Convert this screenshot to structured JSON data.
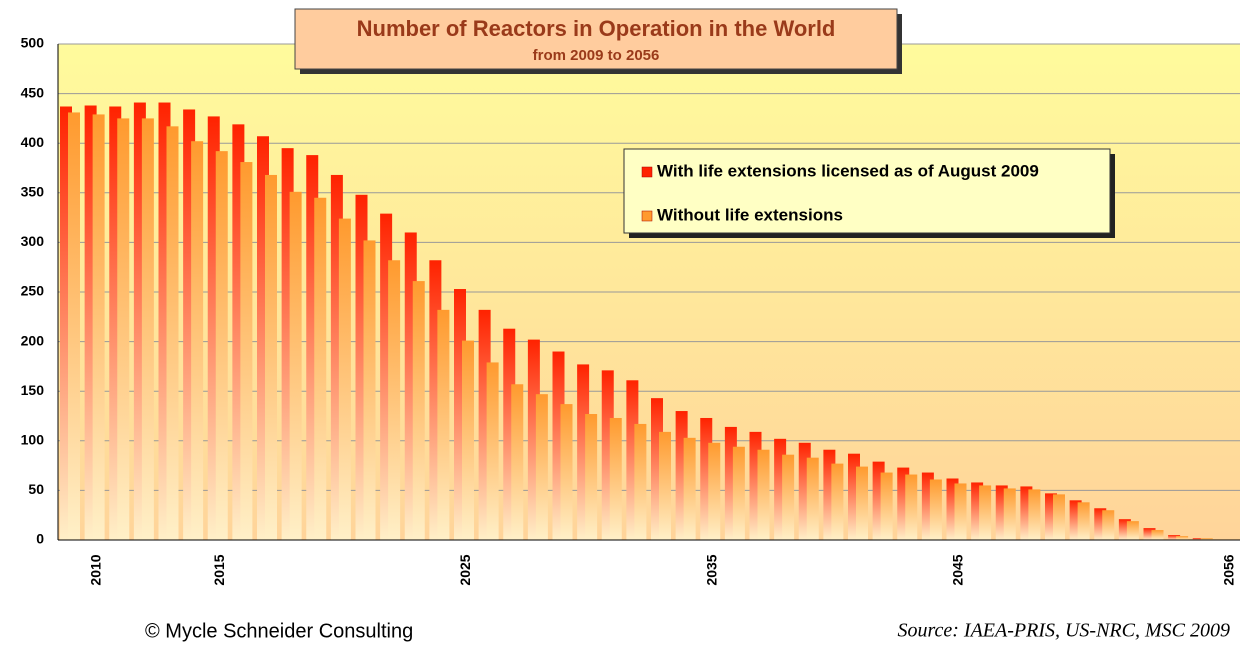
{
  "chart_data": {
    "type": "bar",
    "title": "Number of Reactors in Operation in the World",
    "subtitle": "from 2009 to 2056",
    "categories": [
      null,
      "2010",
      null,
      null,
      null,
      null,
      "2015",
      null,
      null,
      null,
      null,
      null,
      null,
      null,
      null,
      null,
      "2025",
      null,
      null,
      null,
      null,
      null,
      null,
      null,
      null,
      null,
      "2035",
      null,
      null,
      null,
      null,
      null,
      null,
      null,
      null,
      null,
      "2045",
      null,
      null,
      null,
      null,
      null,
      null,
      null,
      null,
      null,
      null,
      "2056"
    ],
    "series": [
      {
        "name": "With life extensions licensed as of August 2009",
        "color": "#ff2200",
        "values": [
          437,
          438,
          437,
          441,
          441,
          434,
          427,
          419,
          407,
          395,
          388,
          368,
          348,
          329,
          310,
          282,
          253,
          232,
          213,
          202,
          190,
          177,
          171,
          161,
          143,
          130,
          123,
          114,
          109,
          102,
          98,
          91,
          87,
          79,
          73,
          68,
          62,
          58,
          55,
          54,
          47,
          40,
          32,
          21,
          12,
          5,
          2,
          0
        ]
      },
      {
        "name": "Without life extensions",
        "color": "#ff9a2e",
        "values": [
          431,
          429,
          425,
          425,
          417,
          402,
          392,
          381,
          368,
          351,
          345,
          324,
          302,
          282,
          261,
          232,
          201,
          179,
          157,
          147,
          137,
          127,
          123,
          117,
          109,
          103,
          98,
          94,
          91,
          86,
          83,
          77,
          74,
          68,
          66,
          61,
          57,
          55,
          52,
          51,
          46,
          38,
          30,
          19,
          10,
          4,
          2,
          0
        ]
      }
    ],
    "ylim": [
      0,
      500
    ],
    "yticks": [
      0,
      50,
      100,
      150,
      200,
      250,
      300,
      350,
      400,
      450,
      500
    ],
    "grid": true,
    "legend": "upper right",
    "footer_left": "© Mycle Schneider Consulting",
    "footer_right": "Source: IAEA-PRIS, US-NRC, MSC 2009"
  }
}
